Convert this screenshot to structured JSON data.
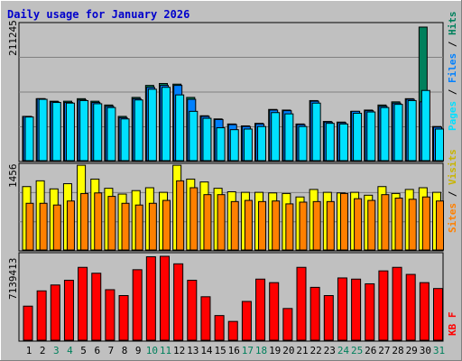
{
  "title": "Daily usage for January 2026",
  "colors": {
    "background": "#c0c0c0",
    "title": "#0000cc",
    "hits": "#00805c",
    "files": "#0080ff",
    "pages": "#00e0ff",
    "visits": "#ffff00",
    "sites": "#ff8000",
    "kbytes": "#ff0000",
    "weekend_day": "#00805c",
    "weekday": "#000000"
  },
  "chart_data": [
    {
      "type": "bar",
      "panel": "top",
      "ymax_label": "211245",
      "ylim": [
        0,
        211245
      ],
      "grid": true,
      "categories": [
        "1",
        "2",
        "3",
        "4",
        "5",
        "6",
        "7",
        "8",
        "9",
        "10",
        "11",
        "12",
        "13",
        "14",
        "15",
        "16",
        "17",
        "18",
        "19",
        "20",
        "21",
        "22",
        "23",
        "24",
        "25",
        "26",
        "27",
        "28",
        "29",
        "30",
        "31"
      ],
      "legend": [
        "Pages",
        "Files",
        "Hits"
      ],
      "series": [
        {
          "name": "Hits",
          "values": [
            70000,
            98000,
            94000,
            94000,
            98000,
            94000,
            88000,
            70000,
            100000,
            119000,
            122000,
            121000,
            100000,
            71000,
            66000,
            58000,
            55000,
            59000,
            81000,
            80000,
            58000,
            95000,
            62000,
            61000,
            78000,
            80000,
            88000,
            93000,
            98000,
            211245,
            54000
          ]
        },
        {
          "name": "Files",
          "values": [
            70000,
            98000,
            93000,
            92000,
            96000,
            92000,
            86000,
            68000,
            98000,
            116000,
            119000,
            119000,
            97000,
            70000,
            65000,
            57000,
            54000,
            58000,
            80000,
            79000,
            57000,
            94000,
            61000,
            60000,
            78000,
            79000,
            86000,
            91000,
            97000,
            93000,
            53000
          ]
        },
        {
          "name": "Pages",
          "values": [
            69000,
            97000,
            92000,
            91000,
            95000,
            90000,
            84000,
            66000,
            96000,
            113000,
            116000,
            104000,
            78000,
            67000,
            52000,
            49000,
            50000,
            54000,
            76000,
            74000,
            54000,
            91000,
            59000,
            58000,
            75000,
            77000,
            84000,
            89000,
            95000,
            111000,
            50000
          ]
        }
      ]
    },
    {
      "type": "bar",
      "panel": "middle",
      "ymax_label": "1456",
      "ylim": [
        0,
        1456
      ],
      "grid": true,
      "categories": [
        "1",
        "2",
        "3",
        "4",
        "5",
        "6",
        "7",
        "8",
        "9",
        "10",
        "11",
        "12",
        "13",
        "14",
        "15",
        "16",
        "17",
        "18",
        "19",
        "20",
        "21",
        "22",
        "23",
        "24",
        "25",
        "26",
        "27",
        "28",
        "29",
        "30",
        "31"
      ],
      "legend": [
        "Sites",
        "Visits"
      ],
      "series": [
        {
          "name": "Visits",
          "values": [
            1100,
            1200,
            1060,
            1150,
            1470,
            1230,
            1070,
            970,
            1030,
            1080,
            1000,
            1470,
            1230,
            1180,
            1070,
            1010,
            1000,
            1000,
            990,
            980,
            920,
            1050,
            1000,
            990,
            1000,
            950,
            1100,
            980,
            1050,
            1080,
            1000
          ]
        },
        {
          "name": "Sites",
          "values": [
            810,
            810,
            780,
            850,
            980,
            990,
            930,
            810,
            780,
            810,
            860,
            1200,
            1080,
            960,
            960,
            840,
            860,
            840,
            850,
            800,
            830,
            840,
            840,
            980,
            890,
            860,
            960,
            900,
            880,
            920,
            850
          ]
        }
      ]
    },
    {
      "type": "bar",
      "panel": "bottom",
      "ymax_label": "7139413",
      "ylim": [
        0,
        7139413
      ],
      "grid": false,
      "categories": [
        "1",
        "2",
        "3",
        "4",
        "5",
        "6",
        "7",
        "8",
        "9",
        "10",
        "11",
        "12",
        "13",
        "14",
        "15",
        "16",
        "17",
        "18",
        "19",
        "20",
        "21",
        "22",
        "23",
        "24",
        "25",
        "26",
        "27",
        "28",
        "29",
        "30",
        "31"
      ],
      "legend": [
        "KB F"
      ],
      "series": [
        {
          "name": "KB F",
          "values": [
            2900000,
            4200000,
            4700000,
            5100000,
            6200000,
            5700000,
            4300000,
            3800000,
            6000000,
            7100000,
            7139413,
            6500000,
            5100000,
            3700000,
            2100000,
            1600000,
            3300000,
            5200000,
            4900000,
            2700000,
            6200000,
            4500000,
            3800000,
            5300000,
            5200000,
            4800000,
            5900000,
            6200000,
            5600000,
            4900000,
            4400000
          ]
        }
      ]
    }
  ],
  "weekend_days": [
    3,
    4,
    10,
    11,
    17,
    18,
    24,
    25,
    31
  ]
}
